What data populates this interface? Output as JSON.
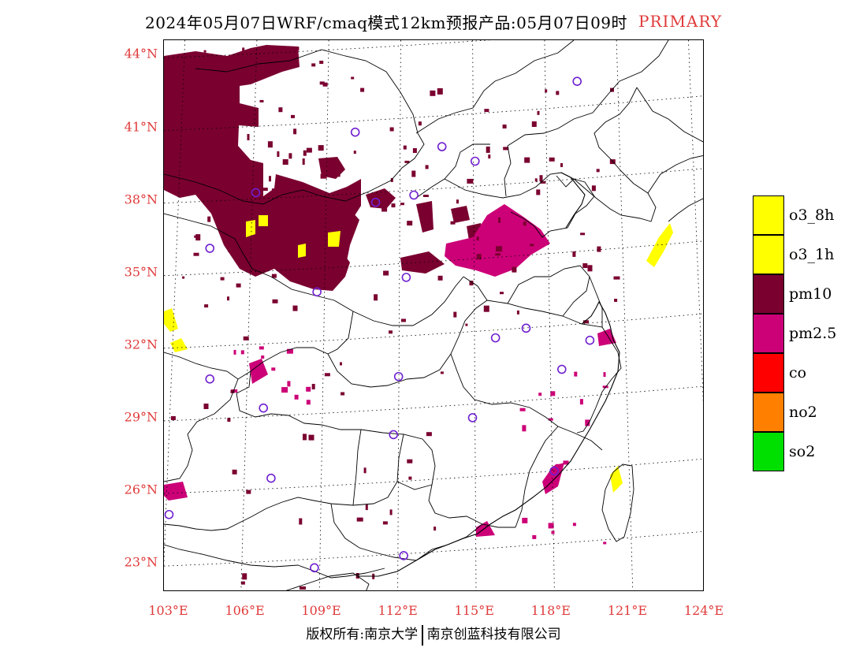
{
  "header": {
    "title": "2024年05月07日WRF/cmaq模式12km预报产品:05月07日09时",
    "tag": "PRIMARY",
    "tag_color": "#e03a3a"
  },
  "axes": {
    "label_color": "#e03a3a",
    "lat_labels": [
      "44°N",
      "41°N",
      "38°N",
      "35°N",
      "32°N",
      "29°N",
      "26°N",
      "23°N"
    ],
    "lon_labels": [
      "103°E",
      "106°E",
      "109°E",
      "112°E",
      "115°E",
      "118°E",
      "121°E",
      "124°E"
    ]
  },
  "legend": {
    "items": [
      {
        "label": "o3_8h",
        "color": "#ffff00"
      },
      {
        "label": "o3_1h",
        "color": "#ffff00"
      },
      {
        "label": "pm10",
        "color": "#7a0030"
      },
      {
        "label": "pm2.5",
        "color": "#cc0077"
      },
      {
        "label": "co",
        "color": "#ff0000"
      },
      {
        "label": "no2",
        "color": "#ff8000"
      },
      {
        "label": "so2",
        "color": "#00e000"
      }
    ]
  },
  "map": {
    "bounds": {
      "lon_min": 102.8,
      "lon_max": 124.0,
      "lat_min": 21.8,
      "lat_max": 44.6
    },
    "cities": [
      {
        "lon": 119.0,
        "lat": 42.9
      },
      {
        "lon": 110.3,
        "lat": 40.8
      },
      {
        "lon": 113.7,
        "lat": 40.2
      },
      {
        "lon": 115.0,
        "lat": 39.6
      },
      {
        "lon": 106.4,
        "lat": 38.3
      },
      {
        "lon": 111.1,
        "lat": 37.9
      },
      {
        "lon": 112.6,
        "lat": 38.2
      },
      {
        "lon": 104.6,
        "lat": 36.0
      },
      {
        "lon": 112.3,
        "lat": 34.8
      },
      {
        "lon": 108.8,
        "lat": 34.2
      },
      {
        "lon": 115.8,
        "lat": 32.3
      },
      {
        "lon": 117.0,
        "lat": 32.7
      },
      {
        "lon": 119.5,
        "lat": 32.2
      },
      {
        "lon": 118.4,
        "lat": 31.0
      },
      {
        "lon": 104.6,
        "lat": 30.6
      },
      {
        "lon": 112.0,
        "lat": 30.7
      },
      {
        "lon": 106.7,
        "lat": 29.4
      },
      {
        "lon": 111.8,
        "lat": 28.3
      },
      {
        "lon": 114.9,
        "lat": 29.0
      },
      {
        "lon": 107.0,
        "lat": 26.5
      },
      {
        "lon": 118.1,
        "lat": 26.8
      },
      {
        "lon": 103.0,
        "lat": 25.0
      },
      {
        "lon": 112.2,
        "lat": 23.3
      },
      {
        "lon": 108.7,
        "lat": 22.8
      }
    ]
  },
  "footer": {
    "left": "版权所有:南京大学",
    "right": "南京创蓝科技有限公司"
  }
}
